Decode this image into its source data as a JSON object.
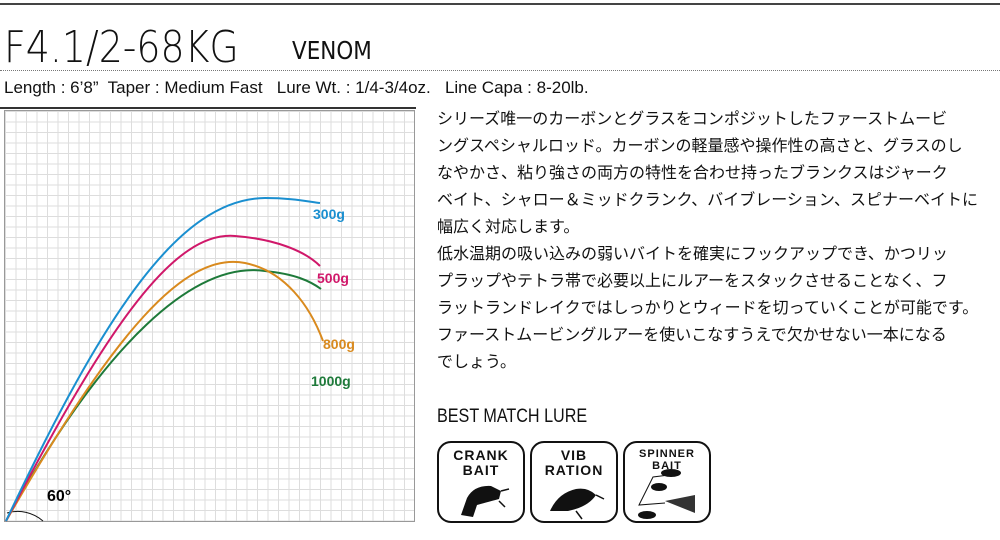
{
  "header": {
    "model": "F4.1/2-68KG",
    "series": "VENOM"
  },
  "specs": "Length : 6’8”  Taper : Medium Fast   Lure Wt. : 1/4-3/4oz.   Line Capa : 8-20lb.",
  "chart": {
    "angle_label": "60°",
    "curves": [
      {
        "label": "300g",
        "color": "#1a8fd0"
      },
      {
        "label": "500g",
        "color": "#d0186a"
      },
      {
        "label": "800g",
        "color": "#d98a1e"
      },
      {
        "label": "1000g",
        "color": "#1e7a3a"
      }
    ]
  },
  "description": [
    "シリーズ唯一のカーボンとグラスをコンポジットしたファーストムービ",
    "ングスペシャルロッド。カーボンの軽量感や操作性の高さと、グラスのし",
    "なやかさ、粘り強さの両方の特性を合わせ持ったブランクスはジャーク",
    "ベイト、シャロー＆ミッドクランク、バイブレーション、スピナーベイトに",
    "幅広く対応します。",
    "低水温期の吸い込みの弱いバイトを確実にフックアップでき、かつリッ",
    "プラップやテトラ帯で必要以上にルアーをスタックさせることなく、フ",
    "ラットランドレイクではしっかりとウィードを切っていくことが可能です。",
    "ファーストムービングルアーを使いこなすうえで欠かせない一本になる",
    "でしょう。"
  ],
  "best_match": {
    "heading": "BEST MATCH LURE",
    "lures": [
      {
        "line1": "CRANK",
        "line2": "BAIT"
      },
      {
        "line1": "VIB",
        "line2": "RATION"
      },
      {
        "line1": "SPINNER",
        "line2": "BAIT"
      }
    ]
  }
}
